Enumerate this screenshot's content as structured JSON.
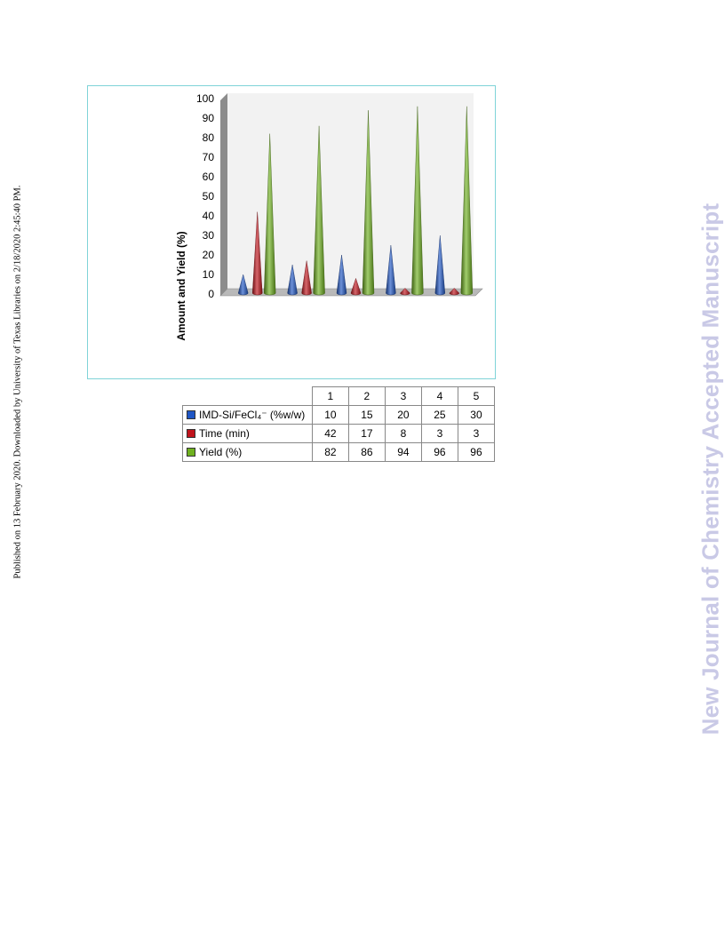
{
  "side_note": "Published on 13 February 2020. Downloaded by University of Texas Libraries on 2/18/2020 2:45:40 PM.",
  "watermark": "New Journal of Chemistry Accepted Manuscript",
  "chart_data": {
    "type": "bar",
    "style": "3d-cone",
    "title": "",
    "xlabel": "",
    "ylabel": "Amount and Yield (%)",
    "ylim": [
      0,
      100
    ],
    "yticks": [
      "0",
      "10",
      "20",
      "30",
      "40",
      "50",
      "60",
      "70",
      "80",
      "90",
      "100"
    ],
    "categories": [
      "1",
      "2",
      "3",
      "4",
      "5"
    ],
    "legend": "data-table-left",
    "series": [
      {
        "name": "IMD-Si/FeCl₄⁻ (%w/w)",
        "color": "#1f56c4",
        "values": [
          10,
          15,
          20,
          25,
          30
        ],
        "display": [
          "10",
          "15",
          "20",
          "25",
          "30"
        ]
      },
      {
        "name": "Time (min)",
        "color": "#c0141c",
        "values": [
          42,
          17,
          8,
          3,
          3
        ],
        "display": [
          "42",
          "17",
          "8",
          "3",
          "3"
        ]
      },
      {
        "name": "Yield (%)",
        "color": "#6fb11f",
        "values": [
          82,
          86,
          94,
          96,
          96
        ],
        "display": [
          "82",
          "86",
          "94",
          "96",
          "96"
        ]
      }
    ]
  }
}
